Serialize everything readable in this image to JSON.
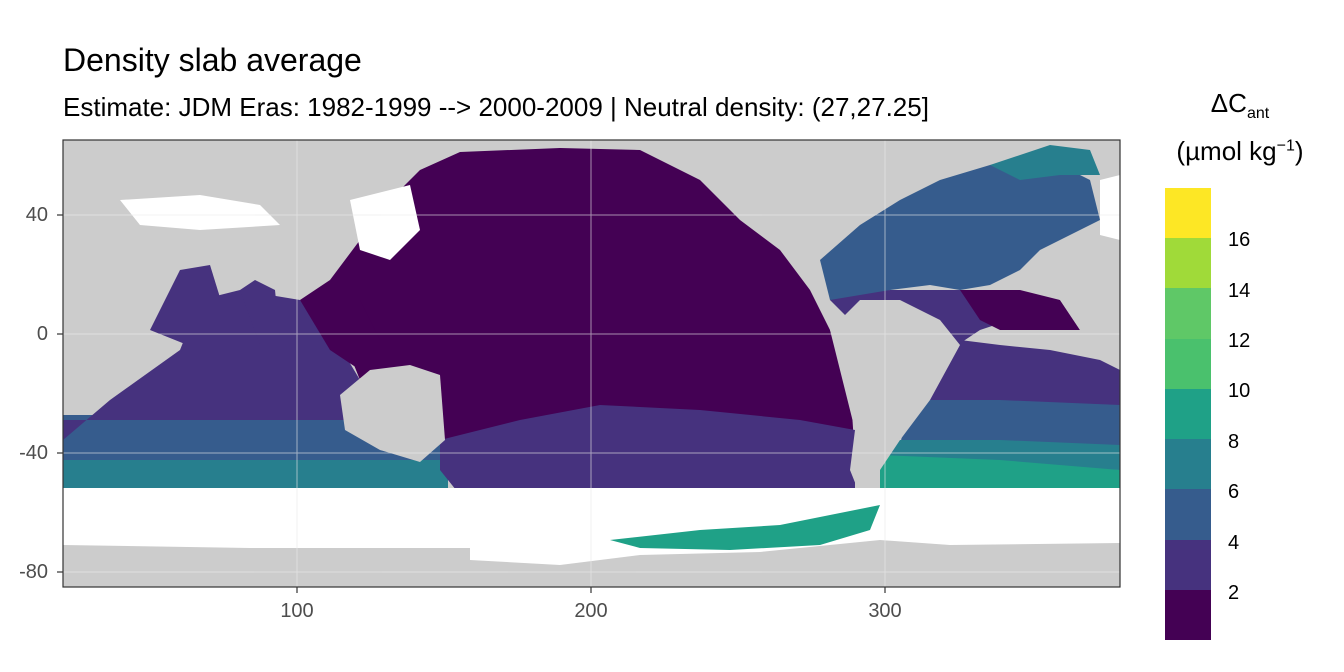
{
  "title": "Density slab average",
  "subtitle": "Estimate: JDM Eras: 1982-1999 --> 2000-2009 | Neutral density: (27,27.25]",
  "legend": {
    "title_main": "ΔC",
    "title_sub": "ant",
    "unit_main": "(µmol kg",
    "unit_sup": "−1",
    "unit_close": ")",
    "labels": [
      "16",
      "14",
      "12",
      "10",
      "8",
      "6",
      "4",
      "2"
    ],
    "bins": [
      {
        "min": 0,
        "max": 2,
        "color": "#440154"
      },
      {
        "min": 2,
        "max": 4,
        "color": "#46327e"
      },
      {
        "min": 4,
        "max": 6,
        "color": "#365c8d"
      },
      {
        "min": 6,
        "max": 8,
        "color": "#277f8e"
      },
      {
        "min": 8,
        "max": 10,
        "color": "#1fa187"
      },
      {
        "min": 10,
        "max": 12,
        "color": "#4ac16d"
      },
      {
        "min": 12,
        "max": 14,
        "color": "#5fc867"
      },
      {
        "min": 14,
        "max": 16,
        "color": "#a0da39"
      },
      {
        "min": 16,
        "max": 18,
        "color": "#fde725"
      }
    ]
  },
  "axes": {
    "x_ticks": [
      "100",
      "200",
      "300"
    ],
    "y_ticks": [
      "40",
      "0",
      "-40",
      "-80"
    ],
    "x_range": [
      20,
      380
    ],
    "y_range": [
      -85,
      65
    ]
  },
  "colors": {
    "land": "#cccccc",
    "no_data": "#ffffff",
    "grid": "#ebebeb",
    "border": "#333333"
  }
}
